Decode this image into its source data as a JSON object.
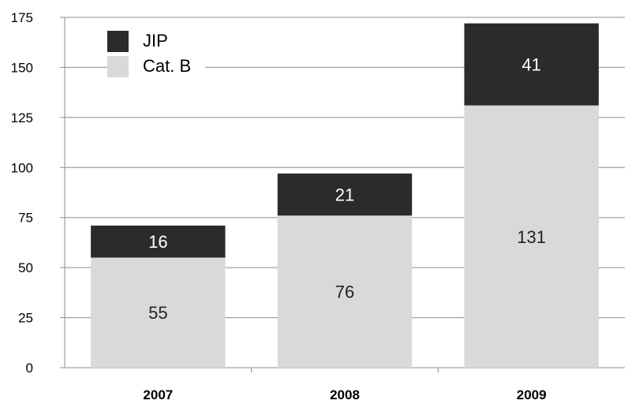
{
  "chart_data": {
    "type": "bar",
    "stacked": true,
    "categories": [
      "2007",
      "2008",
      "2009"
    ],
    "series": [
      {
        "name": "Cat. B",
        "values": [
          55,
          76,
          131
        ],
        "color": "#d9d9d9"
      },
      {
        "name": "JIP",
        "values": [
          16,
          21,
          41
        ],
        "color": "#2b2b2b"
      }
    ],
    "y_ticks": [
      "0",
      "25",
      "50",
      "75",
      "100",
      "125",
      "150",
      "175"
    ],
    "ylim": [
      0,
      175
    ],
    "grid": true,
    "legend": {
      "position": "top-left",
      "items": [
        "JIP",
        "Cat. B"
      ]
    },
    "data_labels": true,
    "title": "",
    "xlabel": "",
    "ylabel": ""
  }
}
